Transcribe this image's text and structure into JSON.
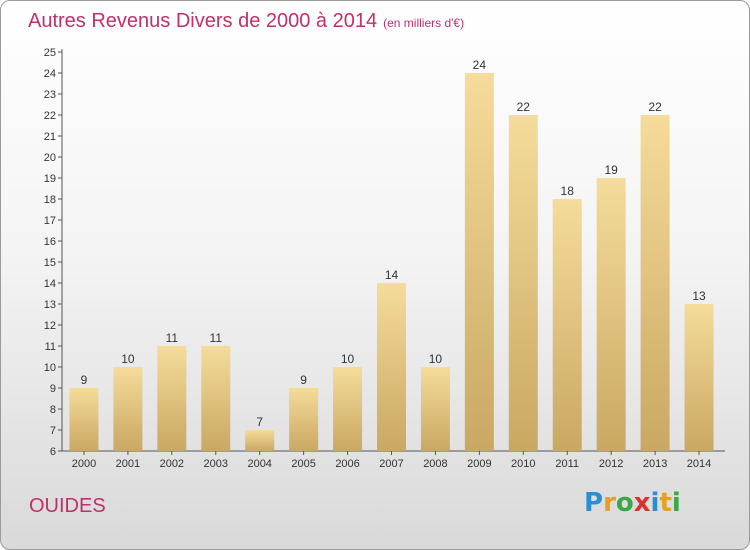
{
  "title": "Autres Revenus Divers de 2000 à 2014",
  "subtitle": "(en milliers d'€)",
  "commune": "OUIDES",
  "logo": {
    "letters": [
      "P",
      "r",
      "o",
      "x",
      "i",
      "t",
      "i"
    ],
    "colors": [
      "#2a8fd0",
      "#e5a020",
      "#3aa844",
      "#d8342e",
      "#2a8fd0",
      "#e5a020",
      "#3aa844"
    ]
  },
  "colors": {
    "title": "#c0306a",
    "bar_light": "#f5dc9a",
    "bar_dark": "#c9a862",
    "label": "#333333"
  },
  "chart_data": {
    "type": "bar",
    "categories": [
      "2000",
      "2001",
      "2002",
      "2003",
      "2004",
      "2005",
      "2006",
      "2007",
      "2008",
      "2009",
      "2010",
      "2011",
      "2012",
      "2013",
      "2014"
    ],
    "values": [
      9,
      10,
      11,
      11,
      7,
      9,
      10,
      14,
      10,
      24,
      22,
      18,
      19,
      22,
      13
    ],
    "ylim": [
      6,
      25
    ],
    "yticks": [
      6,
      7,
      8,
      9,
      10,
      11,
      12,
      13,
      14,
      15,
      16,
      17,
      18,
      19,
      20,
      21,
      22,
      23,
      24,
      25
    ],
    "grid": false,
    "data_labels": true
  }
}
